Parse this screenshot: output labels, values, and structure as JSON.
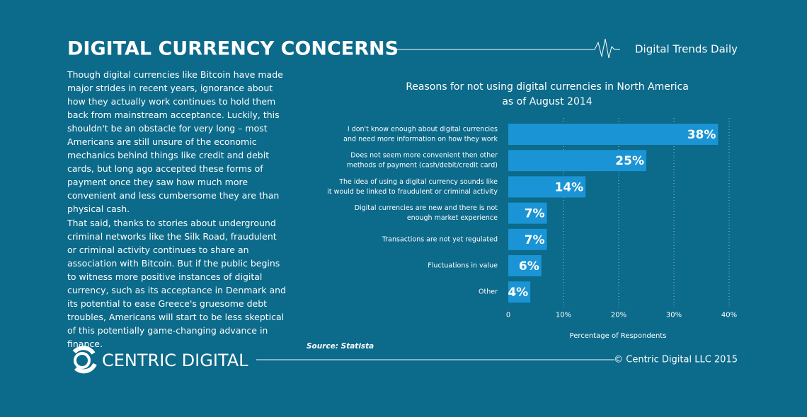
{
  "header": {
    "title": "DIGITAL CURRENCY CONCERNS",
    "brand": "Digital Trends Daily"
  },
  "body": [
    "Though digital currencies like Bitcoin have made major strides in recent years, ignorance about how they actually work continues to hold them back from mainstream acceptance. Luckily, this shouldn't be an obstacle for very long – most Americans are still unsure of the economic mechanics behind things like credit and debit cards, but long ago accepted these forms of payment once they saw how much more convenient and less cumbersome they are than physical cash.",
    "That said, thanks to stories about underground criminal networks like the Silk Road, fraudulent or criminal activity continues to share an association with Bitcoin. But if the public begins to witness more positive instances of digital currency, such as its acceptance in Denmark and its potential to ease Greece's gruesome debt troubles, Americans will start to be less skeptical of this potentially game-changing advance in finance."
  ],
  "chart_data": {
    "type": "bar",
    "orientation": "horizontal",
    "title": [
      "Reasons for not using digital currencies in North America",
      "as of August 2014"
    ],
    "categories": [
      [
        "I don't know enough about digital currencies",
        "and need more information on how they work"
      ],
      [
        "Does not seem more convenient then other",
        "methods of payment (cash/debit/credit card)"
      ],
      [
        "The idea of using a digital currency sounds like",
        "it would be linked to fraudulent or criminal activity"
      ],
      [
        "Digital currencies are new and there is not",
        "enough market experience"
      ],
      [
        "Transactions are not yet regulated"
      ],
      [
        "Fluctuations in value"
      ],
      [
        "Other"
      ]
    ],
    "values": [
      38,
      25,
      14,
      7,
      7,
      6,
      4
    ],
    "value_labels": [
      "38%",
      "25%",
      "14%",
      "7%",
      "7%",
      "6%",
      "4%"
    ],
    "color": "#1a94d4",
    "xlim": [
      0,
      40
    ],
    "xticks": [
      0,
      {
        "value": 10,
        "label": "10%"
      },
      {
        "value": 20,
        "label": "20%"
      },
      {
        "value": 30,
        "label": "30%"
      },
      {
        "value": 40,
        "label": "40%"
      }
    ],
    "xlabel": "Percentage of Respondents",
    "grid": true,
    "source": "Source: Statista"
  },
  "footer": {
    "logo": "CENTRIC DIGITAL",
    "copyright": "© Centric Digital LLC 2015"
  }
}
